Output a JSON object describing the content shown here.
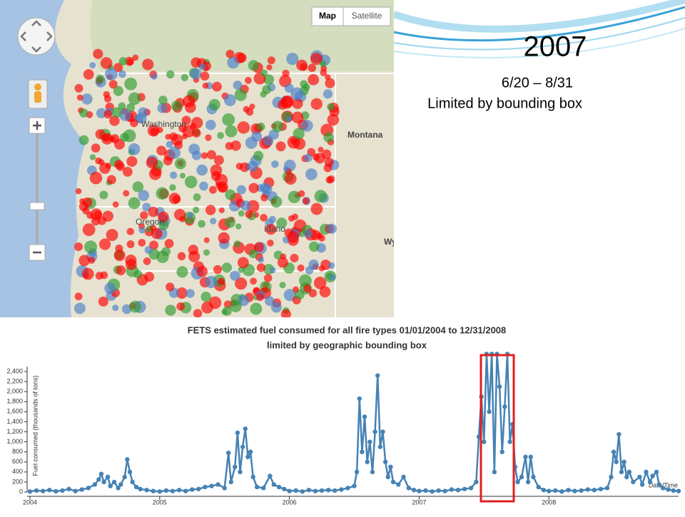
{
  "slide": {
    "title": "2007",
    "subtitle": "6/20 – 8/31",
    "note": "Limited by bounding box"
  },
  "map": {
    "buttons": [
      "Map",
      "Satellite"
    ],
    "labels": [
      "Washington",
      "Oregon",
      "Montana",
      "Idaho",
      "Wy"
    ]
  },
  "chart_data": {
    "type": "line",
    "title": "FETS estimated fuel consumed for all fire types 01/01/2004 to 12/31/2008",
    "subtitle": "limited by geographic bounding box",
    "y_label": "Fuel consumed (thousands of tons)",
    "x_label": "Date/Time",
    "xlim": [
      2004,
      2009
    ],
    "xticks": [
      2004,
      2005,
      2006,
      2007,
      2008
    ],
    "ylim": [
      0,
      2500
    ],
    "yticks": [
      0,
      200,
      400,
      600,
      800,
      {
        "value": 1000,
        "label": "1,000"
      },
      {
        "value": 1200,
        "label": "1,200"
      },
      {
        "value": 1400,
        "label": "1,400"
      },
      {
        "value": 1600,
        "label": "1,600"
      },
      {
        "value": 1800,
        "label": "1,800"
      },
      {
        "value": 2000,
        "label": "2,000"
      },
      {
        "value": 2200,
        "label": "2,200"
      },
      {
        "value": 2400,
        "label": "2,400"
      }
    ],
    "series": [
      {
        "name": "Fuel consumed",
        "color": "#4682b4",
        "x": [
          2004.0,
          2004.05,
          2004.1,
          2004.15,
          2004.2,
          2004.25,
          2004.3,
          2004.35,
          2004.4,
          2004.45,
          2004.5,
          2004.53,
          2004.55,
          2004.57,
          2004.6,
          2004.62,
          2004.65,
          2004.68,
          2004.7,
          2004.73,
          2004.75,
          2004.77,
          2004.79,
          2004.82,
          2004.85,
          2004.9,
          2004.95,
          2005.0,
          2005.05,
          2005.1,
          2005.15,
          2005.2,
          2005.25,
          2005.3,
          2005.35,
          2005.4,
          2005.45,
          2005.5,
          2005.53,
          2005.55,
          2005.58,
          2005.6,
          2005.62,
          2005.64,
          2005.66,
          2005.68,
          2005.7,
          2005.72,
          2005.75,
          2005.8,
          2005.85,
          2005.88,
          2005.92,
          2005.96,
          2006.0,
          2006.05,
          2006.1,
          2006.15,
          2006.2,
          2006.25,
          2006.3,
          2006.35,
          2006.4,
          2006.45,
          2006.5,
          2006.52,
          2006.54,
          2006.56,
          2006.58,
          2006.6,
          2006.62,
          2006.64,
          2006.66,
          2006.68,
          2006.7,
          2006.72,
          2006.74,
          2006.76,
          2006.78,
          2006.8,
          2006.84,
          2006.88,
          2006.92,
          2006.96,
          2007.0,
          2007.05,
          2007.1,
          2007.15,
          2007.2,
          2007.25,
          2007.3,
          2007.35,
          2007.4,
          2007.44,
          2007.46,
          2007.48,
          2007.5,
          2007.52,
          2007.54,
          2007.56,
          2007.58,
          2007.6,
          2007.62,
          2007.64,
          2007.66,
          2007.68,
          2007.7,
          2007.72,
          2007.74,
          2007.76,
          2007.79,
          2007.82,
          2007.84,
          2007.86,
          2007.88,
          2007.92,
          2007.96,
          2008.0,
          2008.05,
          2008.1,
          2008.15,
          2008.2,
          2008.25,
          2008.3,
          2008.35,
          2008.4,
          2008.45,
          2008.48,
          2008.5,
          2008.52,
          2008.54,
          2008.56,
          2008.58,
          2008.6,
          2008.62,
          2008.65,
          2008.7,
          2008.72,
          2008.75,
          2008.78,
          2008.8,
          2008.83,
          2008.85,
          2008.88,
          2008.92,
          2008.96,
          2009.0
        ],
        "values": [
          10,
          30,
          20,
          40,
          15,
          30,
          60,
          20,
          50,
          80,
          150,
          250,
          360,
          200,
          300,
          120,
          200,
          80,
          150,
          300,
          650,
          400,
          200,
          100,
          60,
          40,
          20,
          10,
          30,
          20,
          40,
          20,
          50,
          60,
          100,
          120,
          150,
          80,
          780,
          200,
          500,
          1180,
          400,
          900,
          1260,
          700,
          800,
          300,
          100,
          80,
          320,
          150,
          100,
          60,
          20,
          30,
          10,
          40,
          20,
          30,
          40,
          30,
          50,
          80,
          120,
          400,
          1860,
          800,
          1500,
          600,
          1000,
          400,
          1200,
          2320,
          900,
          1200,
          600,
          300,
          500,
          200,
          150,
          300,
          80,
          40,
          20,
          30,
          10,
          30,
          20,
          50,
          40,
          60,
          80,
          200,
          1100,
          1900,
          1000,
          2750,
          1600,
          2750,
          400,
          2750,
          2100,
          800,
          1700,
          2750,
          1000,
          1350,
          500,
          200,
          300,
          700,
          200,
          700,
          300,
          100,
          40,
          20,
          30,
          10,
          40,
          20,
          30,
          50,
          40,
          60,
          80,
          300,
          800,
          600,
          1150,
          400,
          600,
          300,
          400,
          200,
          300,
          150,
          400,
          200,
          320,
          400,
          150,
          80,
          50,
          30,
          20
        ]
      }
    ]
  }
}
